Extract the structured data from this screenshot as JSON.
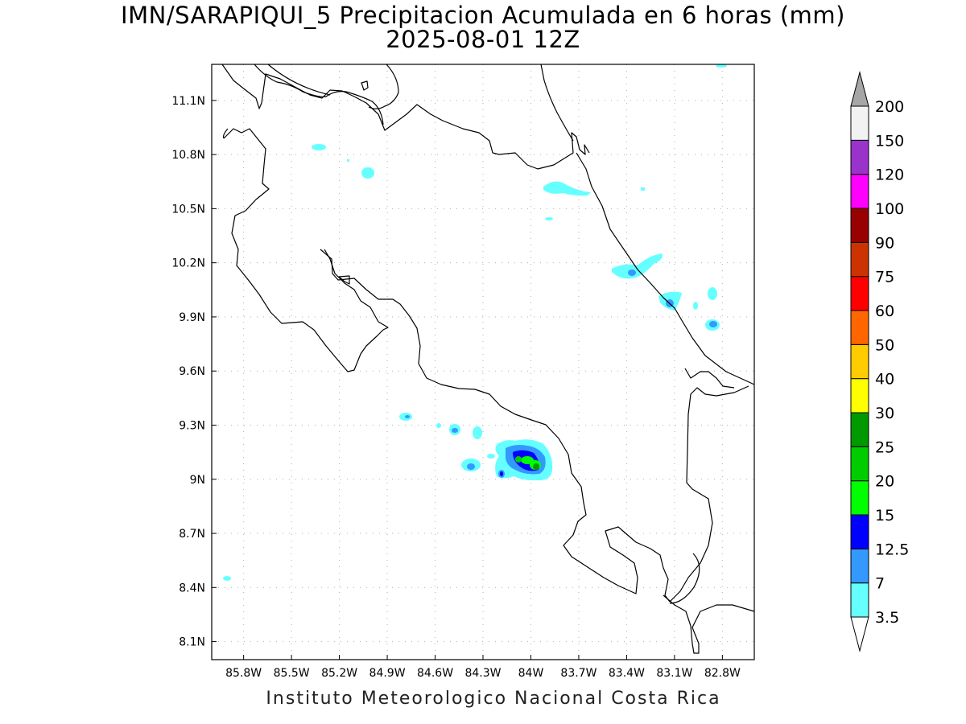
{
  "title": {
    "line1": "IMN/SARAPIQUI_5 Precipitacion Acumulada en 6 horas (mm)",
    "line2": "2025-08-01 12Z"
  },
  "credit": "Instituto Meteorologico Nacional Costa Rica",
  "map": {
    "lon_range": [
      -86.0,
      -82.6
    ],
    "lat_range": [
      8.0,
      11.3
    ],
    "x_ticks": [
      "85.8W",
      "85.5W",
      "85.2W",
      "84.9W",
      "84.6W",
      "84.3W",
      "84W",
      "83.7W",
      "83.4W",
      "83.1W",
      "82.8W"
    ],
    "x_tick_values": [
      -85.8,
      -85.5,
      -85.2,
      -84.9,
      -84.6,
      -84.3,
      -84.0,
      -83.7,
      -83.4,
      -83.1,
      -82.8
    ],
    "y_ticks": [
      "11.1N",
      "10.8N",
      "10.5N",
      "10.2N",
      "9.9N",
      "9.6N",
      "9.3N",
      "9N",
      "8.7N",
      "8.4N",
      "8.1N"
    ],
    "y_tick_values": [
      11.1,
      10.8,
      10.5,
      10.2,
      9.9,
      9.6,
      9.3,
      9.0,
      8.7,
      8.4,
      8.1
    ],
    "grid": true
  },
  "colorbar": {
    "levels": [
      "3.5",
      "7",
      "12.5",
      "15",
      "20",
      "25",
      "30",
      "40",
      "50",
      "60",
      "75",
      "90",
      "100",
      "120",
      "150",
      "200"
    ],
    "colors": [
      "#ffffff",
      "#66ffff",
      "#3399ff",
      "#0000ff",
      "#00ff00",
      "#00cc00",
      "#009900",
      "#ffff00",
      "#ffcc00",
      "#ff6600",
      "#ff0000",
      "#cc3300",
      "#990000",
      "#ff00ff",
      "#9933cc",
      "#f2f2f2",
      "#a6a6a6"
    ]
  },
  "precipitation_cells": [
    {
      "lon": -85.21,
      "lat": 10.84,
      "level": "3.5"
    },
    {
      "lon": -84.99,
      "lat": 10.7,
      "level": "3.5"
    },
    {
      "lon": -83.82,
      "lat": 10.61,
      "level": "3.5"
    },
    {
      "lon": -83.35,
      "lat": 10.14,
      "level": "7"
    },
    {
      "lon": -83.08,
      "lat": 9.98,
      "level": "7"
    },
    {
      "lon": -82.79,
      "lat": 9.84,
      "level": "7"
    },
    {
      "lon": -84.74,
      "lat": 9.34,
      "level": "3.5"
    },
    {
      "lon": -84.44,
      "lat": 9.27,
      "level": "7"
    },
    {
      "lon": -84.34,
      "lat": 9.07,
      "level": "7"
    },
    {
      "lon": -83.96,
      "lat": 9.09,
      "level": "25"
    },
    {
      "lon": -85.92,
      "lat": 8.45,
      "level": "3.5"
    }
  ]
}
